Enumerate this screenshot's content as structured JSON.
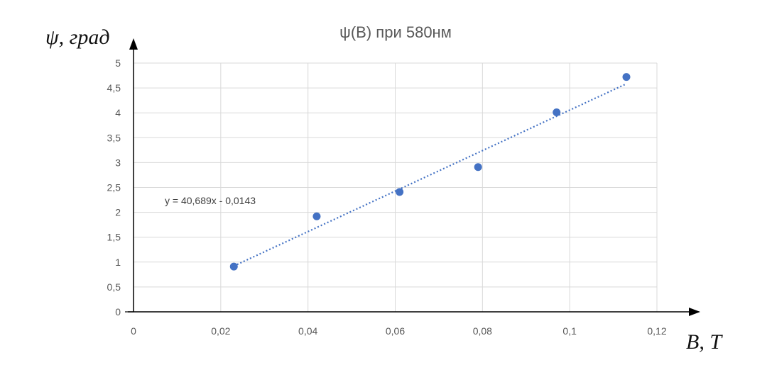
{
  "chart_data": {
    "type": "scatter",
    "title": "ψ(B) при 580нм",
    "xlabel": "B, T",
    "ylabel": "ψ, град",
    "xlim": [
      0,
      0.12
    ],
    "ylim": [
      0,
      5
    ],
    "x_ticks": [
      "0",
      "0,02",
      "0,04",
      "0,06",
      "0,08",
      "0,1",
      "0,12"
    ],
    "y_ticks": [
      "0",
      "0,5",
      "1",
      "1,5",
      "2",
      "2,5",
      "3",
      "3,5",
      "4",
      "4,5",
      "5"
    ],
    "grid": true,
    "series": [
      {
        "x": [
          0.023,
          0.042,
          0.061,
          0.079,
          0.097,
          0.113
        ],
        "y": [
          0.91,
          1.92,
          2.41,
          2.91,
          4.01,
          4.72
        ]
      }
    ],
    "trendline": {
      "type": "linear",
      "slope": 40.689,
      "intercept": -0.0143,
      "x_range": [
        0.023,
        0.113
      ],
      "equation": "y = 40,689x - 0,0143"
    },
    "colors": {
      "marker": "#4472C4",
      "trendline": "#4472C4",
      "grid": "#D9D9D9",
      "axis": "#000000"
    }
  }
}
